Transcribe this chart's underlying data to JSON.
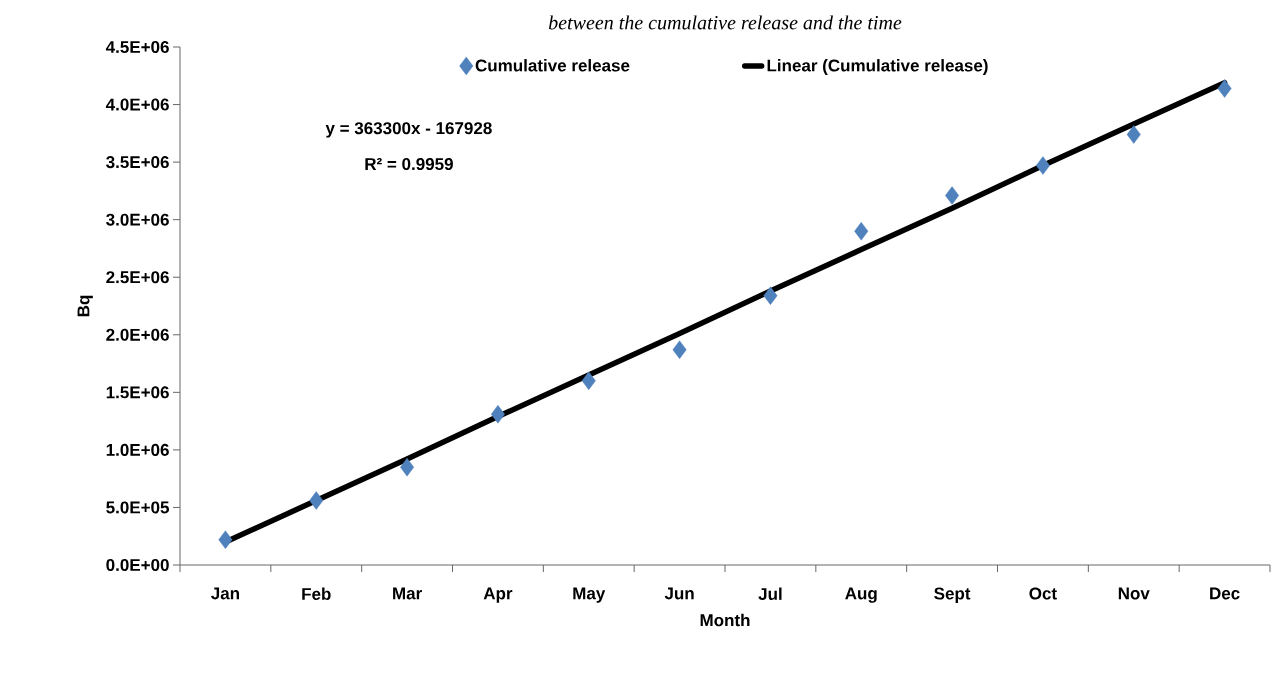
{
  "chart_data": {
    "type": "scatter",
    "title": "between the cumulative release and the time",
    "xlabel": "Month",
    "ylabel": "Bq",
    "categories": [
      "Jan",
      "Feb",
      "Mar",
      "Apr",
      "May",
      "Jun",
      "Jul",
      "Aug",
      "Sept",
      "Oct",
      "Nov",
      "Dec"
    ],
    "series": [
      {
        "name": "Cumulative release",
        "color": "#4f81bd",
        "marker": "diamond",
        "values": [
          220000,
          560000,
          850000,
          1310000,
          1600000,
          1870000,
          2340000,
          2900000,
          3210000,
          3470000,
          3740000,
          4140000
        ]
      },
      {
        "name": "Linear (Cumulative release)",
        "type": "line",
        "color": "#000000",
        "marker": "none",
        "line_style": "solid",
        "values": [
          200000,
          560000,
          920000,
          1290000,
          1650000,
          2010000,
          2380000,
          2740000,
          3100000,
          3470000,
          3830000,
          4190000
        ]
      }
    ],
    "ylim": [
      0,
      4500000
    ],
    "yticks": [
      {
        "value": 0,
        "label": "0.0E+00"
      },
      {
        "value": 500000,
        "label": "5.0E+05"
      },
      {
        "value": 1000000,
        "label": "1.0E+06"
      },
      {
        "value": 1500000,
        "label": "1.5E+06"
      },
      {
        "value": 2000000,
        "label": "2.0E+06"
      },
      {
        "value": 2500000,
        "label": "2.5E+06"
      },
      {
        "value": 3000000,
        "label": "3.0E+06"
      },
      {
        "value": 3500000,
        "label": "3.5E+06"
      },
      {
        "value": 4000000,
        "label": "4.0E+06"
      },
      {
        "value": 4500000,
        "label": "4.5E+06"
      }
    ],
    "annotations": [
      "y = 363300x - 167928",
      "R² = 0.9959"
    ],
    "legend": "top",
    "grid": false
  }
}
